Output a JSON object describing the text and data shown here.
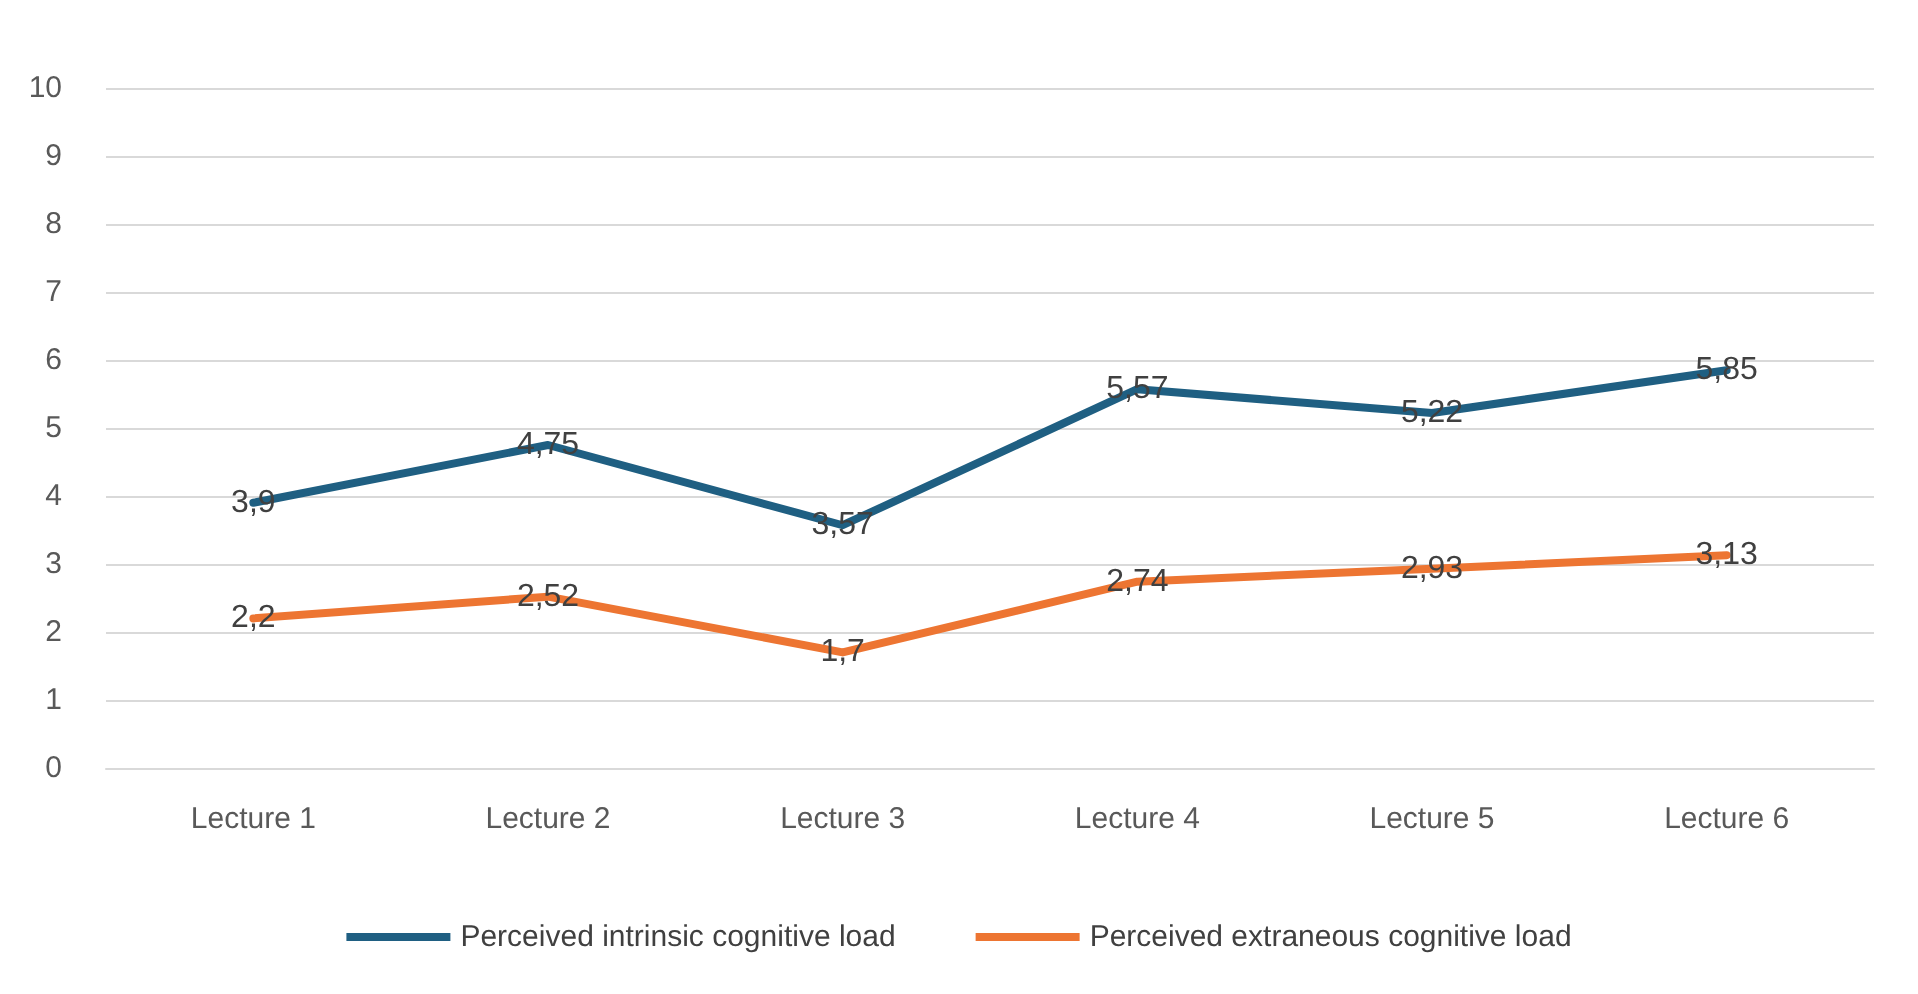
{
  "chart_data": {
    "type": "line",
    "categories": [
      "Lecture 1",
      "Lecture 2",
      "Lecture 3",
      "Lecture 4",
      "Lecture 5",
      "Lecture 6"
    ],
    "series": [
      {
        "name": "Perceived intrinsic cognitive load",
        "color": "#1f5f82",
        "values": [
          3.9,
          4.75,
          3.57,
          5.57,
          5.22,
          5.85
        ],
        "value_labels": [
          "3,9",
          "4,75",
          "3,57",
          "5,57",
          "5,22",
          "5,85"
        ]
      },
      {
        "name": "Perceived extraneous cognitive load",
        "color": "#ed7532",
        "values": [
          2.2,
          2.52,
          1.7,
          2.74,
          2.93,
          3.13
        ],
        "value_labels": [
          "2,2",
          "2,52",
          "1,7",
          "2,74",
          "2,93",
          "3,13"
        ]
      }
    ],
    "ylim": [
      0,
      10
    ],
    "yticks": [
      0,
      1,
      2,
      3,
      4,
      5,
      6,
      7,
      8,
      9,
      10
    ],
    "grid": "y",
    "legend": "bottom",
    "marker": "none",
    "line_style": "solid"
  }
}
